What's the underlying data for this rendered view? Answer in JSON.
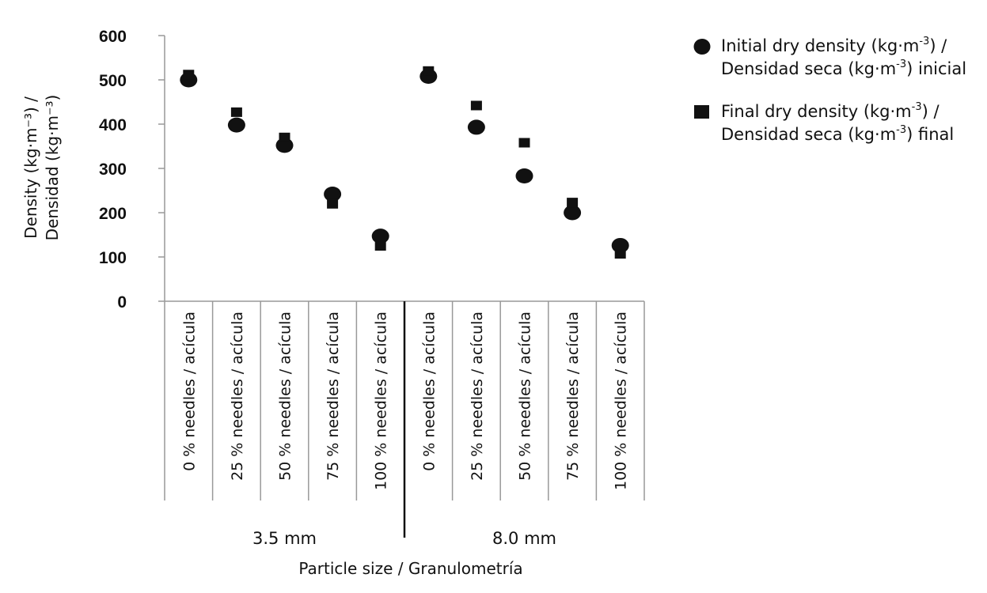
{
  "chart_data": {
    "type": "scatter",
    "y_label_line1": "Density (kg·m⁻³) /",
    "y_label_line2": "Densidad (kg·m⁻³)",
    "x_title": "Particle size / Granulometría",
    "ylim": [
      0,
      600
    ],
    "y_ticks": [
      "600",
      "500",
      "400",
      "300",
      "200",
      "100",
      "0"
    ],
    "categories": [
      "0 % needles / acícula",
      "25 % needles / acícula",
      "50 % needles / acícula",
      "75 % needles / acícula",
      "100 % needles / acícula",
      "0 % needles / acícula",
      "25 % needles / acícula",
      "50 % needles / acícula",
      "75 % needles / acícula",
      "100 % needles / acícula"
    ],
    "groups": [
      {
        "label": "3.5 mm",
        "count": 5
      },
      {
        "label": "8.0 mm",
        "count": 5
      }
    ],
    "series": [
      {
        "name_l1": "Initial dry density (kg·m",
        "name_l1_sup": "-3",
        "name_l1_end": ") /",
        "name_l2": "Densidad seca (kg·m",
        "name_l2_sup": "-3",
        "name_l2_end": ") inicial",
        "marker": "circle",
        "values": [
          500,
          398,
          352,
          242,
          147,
          508,
          393,
          283,
          200,
          126
        ]
      },
      {
        "name_l1": "Final dry density (kg·m",
        "name_l1_sup": "-3",
        "name_l1_end": ") /",
        "name_l2": "Densidad seca (kg·m",
        "name_l2_sup": "-3",
        "name_l2_end": ") final",
        "marker": "square",
        "values": [
          512,
          427,
          370,
          220,
          125,
          520,
          442,
          358,
          223,
          107
        ]
      }
    ],
    "legend_position": "top-right",
    "marker_color": "#111111"
  }
}
